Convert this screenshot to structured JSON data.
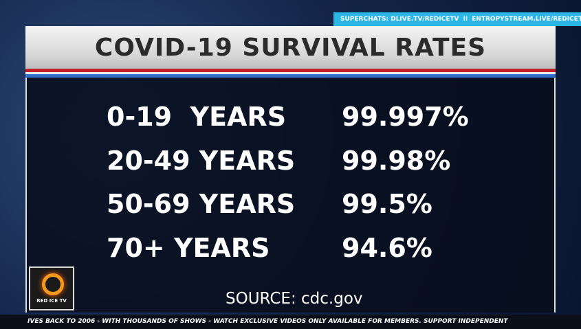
{
  "banner": {
    "left": "SUPERCHATS: DLIVE.TV/REDICETV",
    "separator": "II",
    "right": "ENTROPYSTREAM.LIVE/REDICETV"
  },
  "header": {
    "title": "COVID-19 SURVIVAL RATES"
  },
  "table": {
    "rows": [
      [
        "0-19  YEARS",
        "99.997%"
      ],
      [
        "20-49 YEARS",
        "99.98%"
      ],
      [
        "50-69 YEARS",
        "99.5%"
      ],
      [
        "70+ YEARS",
        "94.6%"
      ]
    ]
  },
  "source": "SOURCE: cdc.gov",
  "logo": "RED ICE TV",
  "ticker": "IVES BACK TO 2006 -  WITH THOUSANDS OF SHOWS - WATCH EXCLUSIVE VIDEOS ONLY AVAILABLE FOR MEMBERS. SUPPORT INDEPENDENT"
}
